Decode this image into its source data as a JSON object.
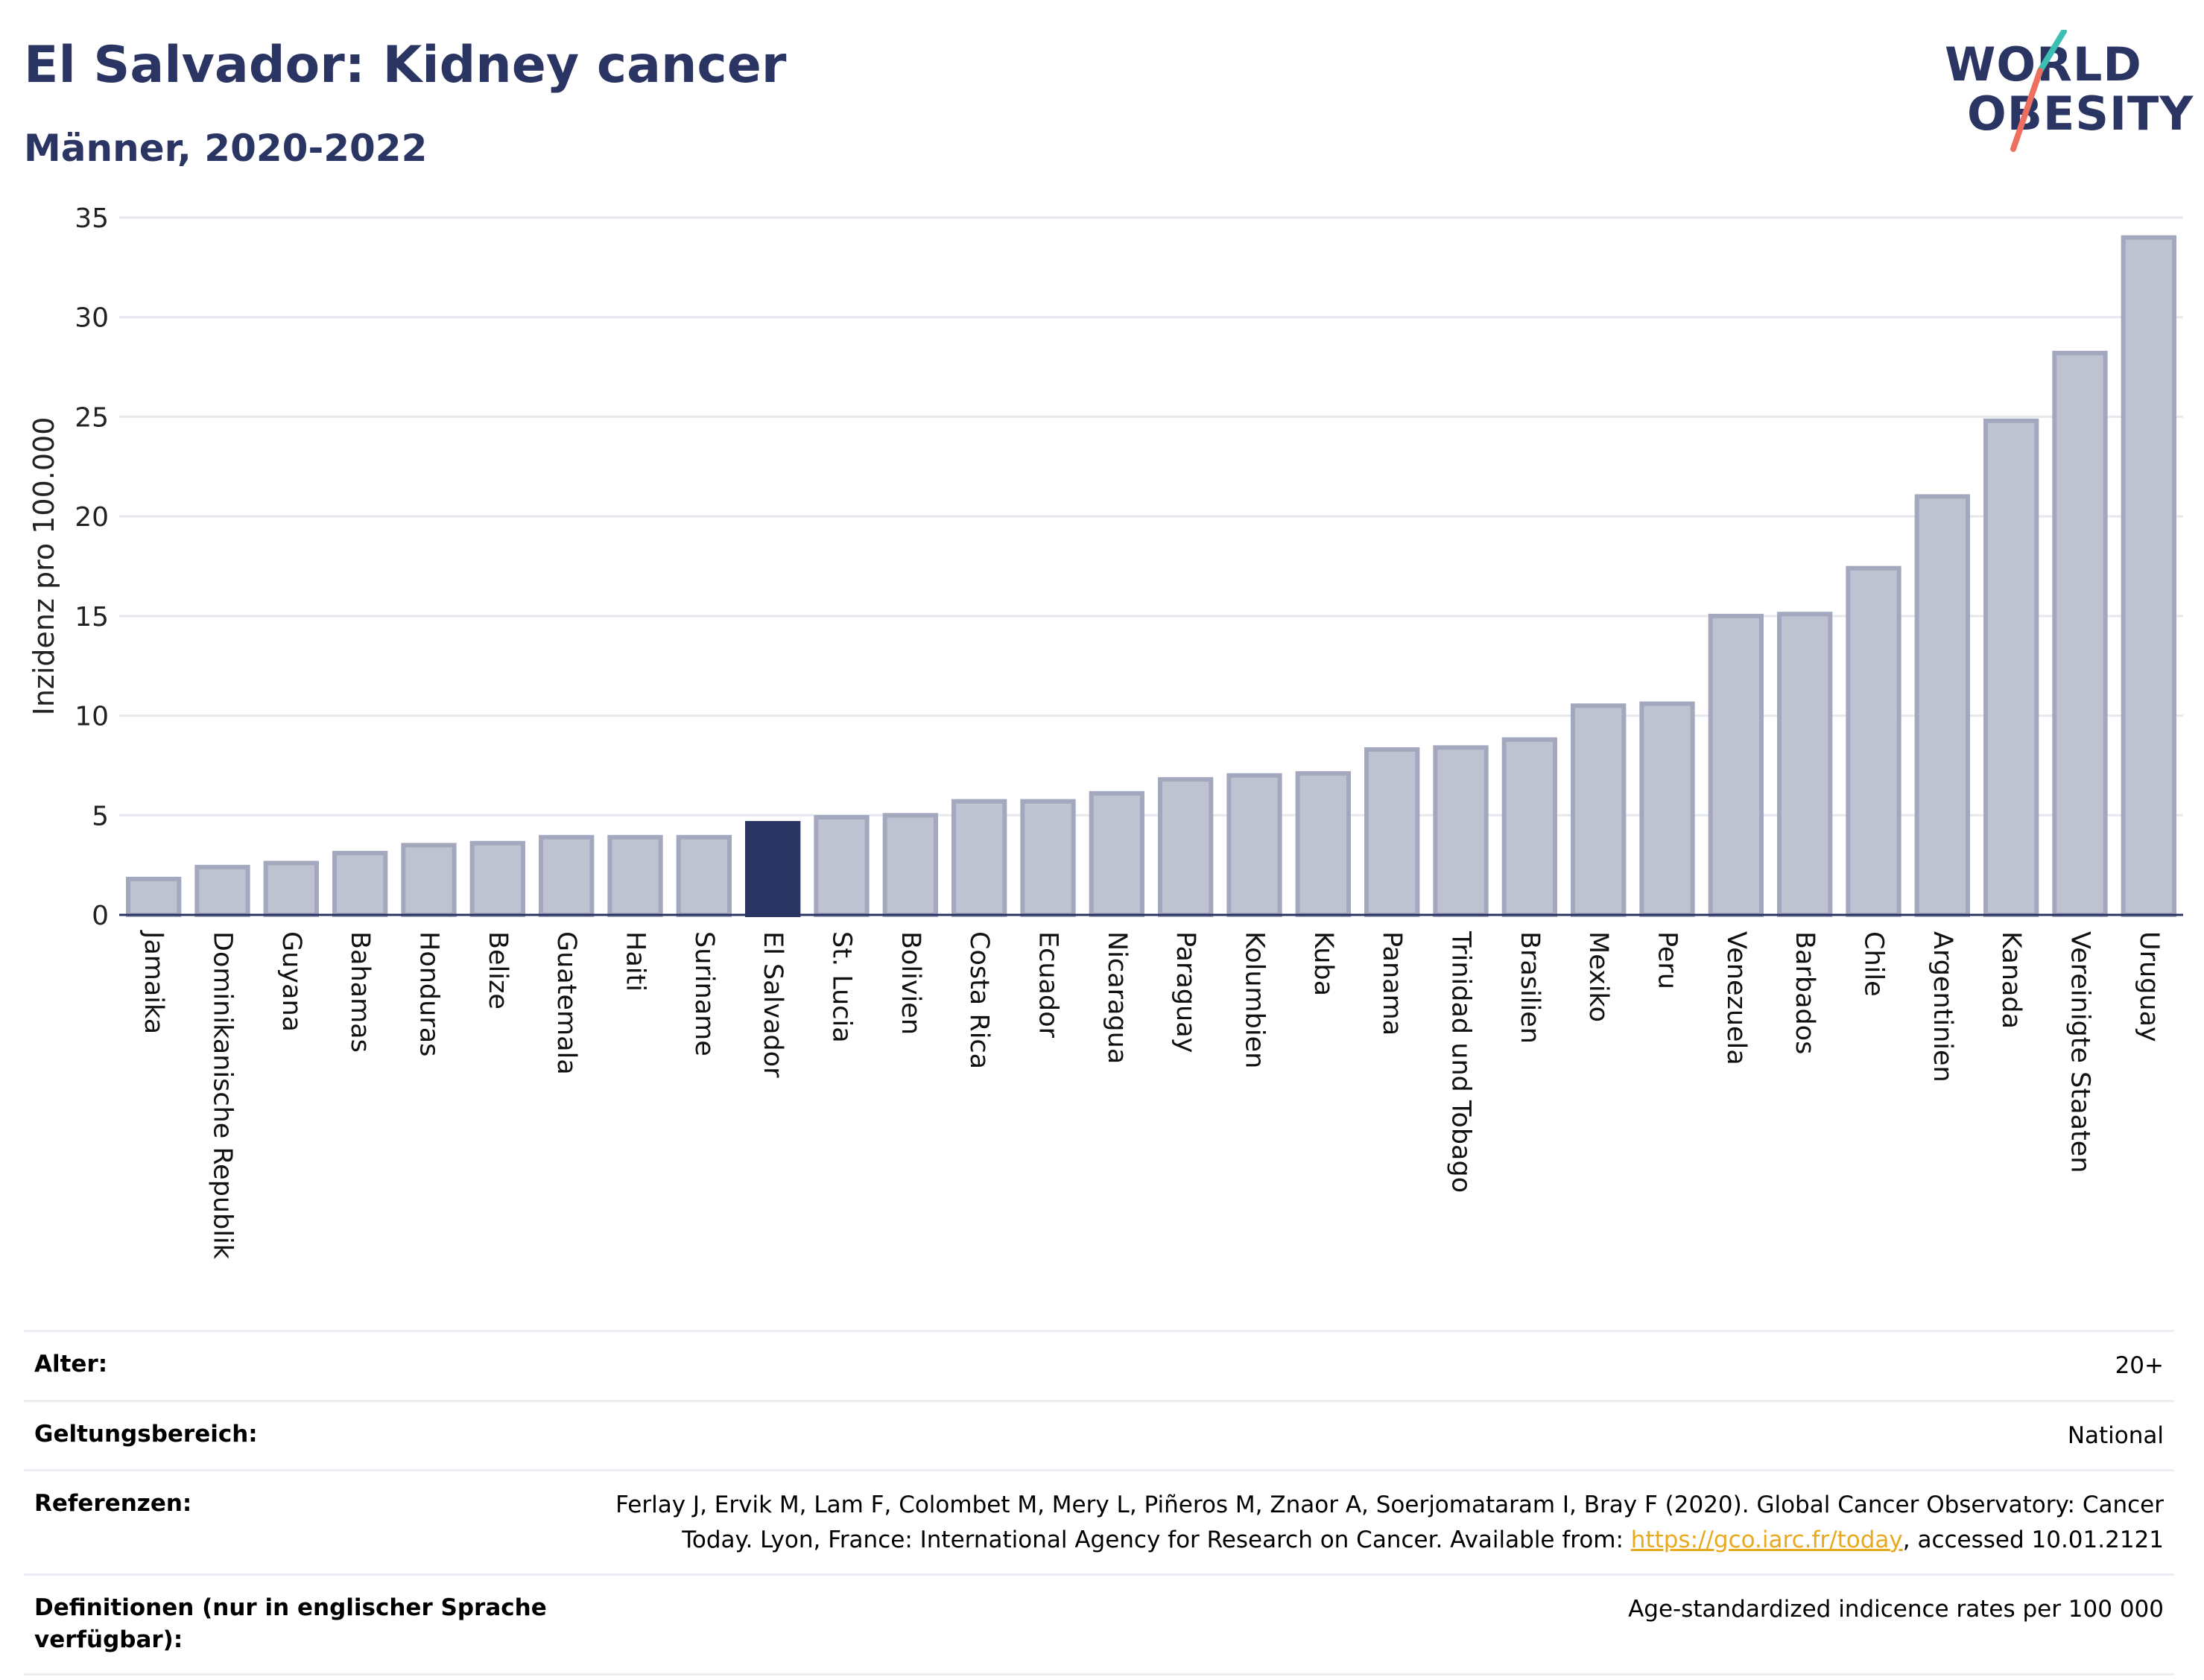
{
  "header": {
    "title": "El Salvador: Kidney cancer",
    "subtitle": "Männer, 2020-2022"
  },
  "logo": {
    "line1": "WORLD",
    "line2": "OBESITY"
  },
  "colors": {
    "highlight": "#2b3563",
    "bar_fill": "#bfc2d0",
    "bar_stroke": "#a3a8be",
    "title": "#2b3563",
    "link": "#e8a91f",
    "logo_teal": "#3bbfb3",
    "logo_red": "#ee6f5f"
  },
  "chart_data": {
    "type": "bar",
    "ylabel": "Inzidenz pro 100.000",
    "ylim": [
      0,
      35
    ],
    "yticks": [
      0,
      5,
      10,
      15,
      20,
      25,
      30,
      35
    ],
    "grid": true,
    "highlight_category": "El Salvador",
    "categories": [
      "Jamaika",
      "Dominikanische Republik",
      "Guyana",
      "Bahamas",
      "Honduras",
      "Belize",
      "Guatemala",
      "Haiti",
      "Suriname",
      "El Salvador",
      "St. Lucia",
      "Bolivien",
      "Costa Rica",
      "Ecuador",
      "Nicaragua",
      "Paraguay",
      "Kolumbien",
      "Kuba",
      "Panama",
      "Trinidad und Tobago",
      "Brasilien",
      "Mexiko",
      "Peru",
      "Venezuela",
      "Barbados",
      "Chile",
      "Argentinien",
      "Kanada",
      "Vereinigte Staaten",
      "Uruguay"
    ],
    "values": [
      1.8,
      2.4,
      2.6,
      3.1,
      3.5,
      3.6,
      3.9,
      3.9,
      3.9,
      4.6,
      4.9,
      5.0,
      5.7,
      5.7,
      6.1,
      6.8,
      7.0,
      7.1,
      8.3,
      8.4,
      8.8,
      10.5,
      10.6,
      15.0,
      15.1,
      17.4,
      21.0,
      24.8,
      28.2,
      34.0
    ]
  },
  "meta": {
    "age_label": "Alter:",
    "age_value": "20+",
    "scope_label": "Geltungsbereich:",
    "scope_value": "National",
    "refs_label": "Referenzen:",
    "refs_text_1": "Ferlay J, Ervik M, Lam F, Colombet M, Mery L, Piñeros M, Znaor A, Soerjomataram I, Bray F (2020). Global Cancer Observatory: Cancer Today. Lyon, France: International Agency for Research on Cancer. Available from: ",
    "refs_link": "https://gco.iarc.fr/today",
    "refs_text_2": ", accessed 10.01.2121",
    "defs_label": "Definitionen (nur in englischer Sprache verfügbar):",
    "defs_value": "Age-standardized indicence rates per 100 000"
  }
}
